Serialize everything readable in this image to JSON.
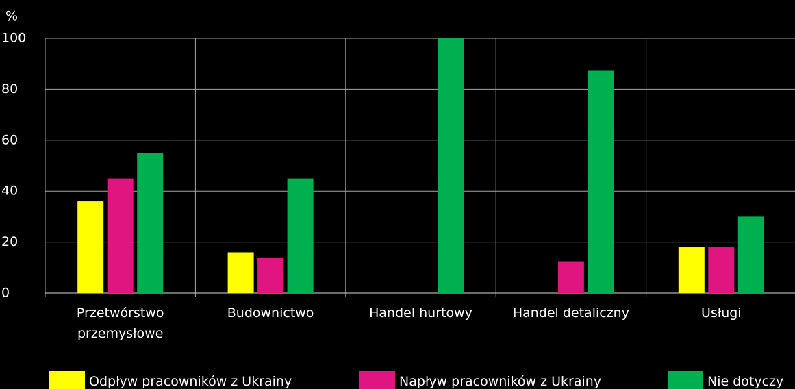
{
  "chart_data": {
    "type": "bar",
    "y_label": "%",
    "categories": [
      "Przetwórstwo przemysłowe",
      "Budownictwo",
      "Handel hurtowy",
      "Handel detaliczny",
      "Usługi"
    ],
    "series": [
      {
        "name": "Odpływ pracowników z Ukrainy",
        "color": "#ffff00",
        "values": [
          36,
          16,
          0,
          0,
          18
        ]
      },
      {
        "name": "Napływ pracowników z Ukrainy",
        "color": "#e0157f",
        "values": [
          45,
          14,
          0,
          12.5,
          18
        ]
      },
      {
        "name": "Nie dotyczy",
        "color": "#00b050",
        "values": [
          55,
          45,
          100,
          87.5,
          30
        ]
      }
    ],
    "ylim": [
      0,
      100
    ],
    "yticks": [
      0,
      20,
      40,
      60,
      80,
      100
    ],
    "grid": true
  }
}
